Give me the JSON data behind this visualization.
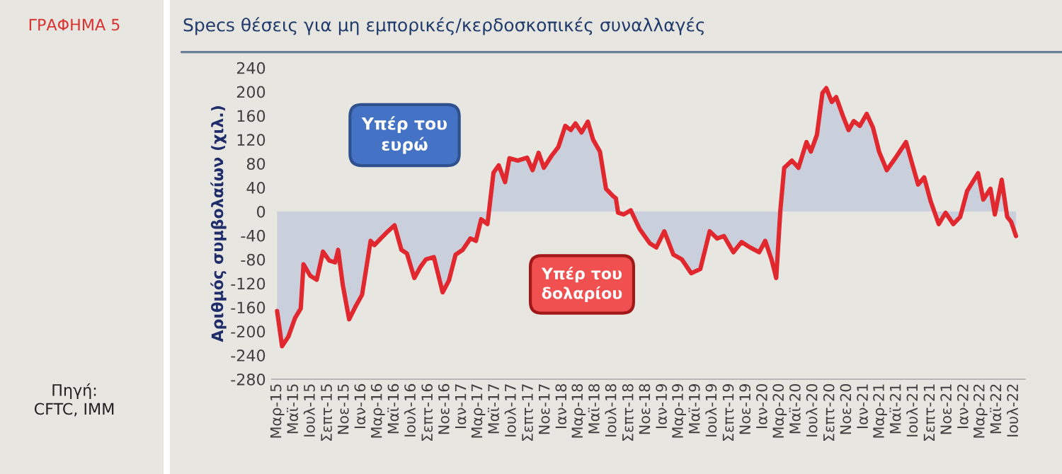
{
  "chart_data": {
    "type": "area",
    "title": "Specs θέσεις για μη εμπορικές/κερδοσκοπικές συναλλαγές",
    "ylabel": "Αριθμός συμβολαίων (χιλ.)",
    "annotations": [
      "ΓΡΑΦΗΜΑ 5",
      "Πηγή:\nCFTC, IMM",
      "Υπέρ του\nευρώ",
      "Υπέρ του\nδολαρίου"
    ],
    "x": [
      "2015-03-01",
      "2015-03-19",
      "2015-04-11",
      "2015-05-05",
      "2015-05-26",
      "2015-06-05",
      "2015-06-29",
      "2015-07-23",
      "2015-08-15",
      "2015-09-07",
      "2015-09-28",
      "2015-10-09",
      "2015-10-26",
      "2015-11-18",
      "2015-12-12",
      "2016-01-04",
      "2016-02-04",
      "2016-02-18",
      "2016-03-12",
      "2016-04-07",
      "2016-05-01",
      "2016-05-26",
      "2016-06-15",
      "2016-07-12",
      "2016-08-04",
      "2016-08-23",
      "2016-09-21",
      "2016-10-23",
      "2016-11-15",
      "2016-12-09",
      "2017-01-04",
      "2017-02-01",
      "2017-02-21",
      "2017-03-12",
      "2017-04-04",
      "2017-04-26",
      "2017-05-15",
      "2017-06-07",
      "2017-06-23",
      "2017-07-23",
      "2017-08-26",
      "2017-09-15",
      "2017-10-07",
      "2017-10-26",
      "2017-11-23",
      "2017-12-18",
      "2018-01-12",
      "2018-02-01",
      "2018-02-18",
      "2018-03-12",
      "2018-04-04",
      "2018-04-23",
      "2018-05-18",
      "2018-06-09",
      "2018-07-04",
      "2018-07-15",
      "2018-07-23",
      "2018-08-12",
      "2018-09-07",
      "2018-10-09",
      "2018-11-15",
      "2018-12-09",
      "2019-01-07",
      "2019-02-09",
      "2019-03-12",
      "2019-04-15",
      "2019-05-18",
      "2019-06-21",
      "2019-07-18",
      "2019-08-12",
      "2019-09-15",
      "2019-10-15",
      "2019-11-15",
      "2019-12-18",
      "2020-01-09",
      "2020-02-01",
      "2020-02-18",
      "2020-03-04",
      "2020-03-18",
      "2020-04-15",
      "2020-05-09",
      "2020-06-07",
      "2020-06-23",
      "2020-07-15",
      "2020-08-04",
      "2020-08-18",
      "2020-09-07",
      "2020-09-23",
      "2020-10-18",
      "2020-11-07",
      "2020-11-26",
      "2020-12-18",
      "2021-01-12",
      "2021-02-04",
      "2021-02-26",
      "2021-03-26",
      "2021-04-26",
      "2021-06-04",
      "2021-06-23",
      "2021-07-18",
      "2021-08-09",
      "2021-09-01",
      "2021-10-01",
      "2021-10-26",
      "2021-11-23",
      "2021-12-18",
      "2022-01-12",
      "2022-02-21",
      "2022-03-12",
      "2022-04-07",
      "2022-04-23",
      "2022-05-18",
      "2022-06-07",
      "2022-06-21",
      "2022-07-09"
    ],
    "series": [
      {
        "color": "#e0282e",
        "values": [
          -166,
          -225,
          -209,
          -178,
          -162,
          -88,
          -107,
          -114,
          -67,
          -82,
          -85,
          -64,
          -123,
          -180,
          -158,
          -139,
          -49,
          -56,
          -45,
          -33,
          -23,
          -64,
          -70,
          -111,
          -92,
          -80,
          -76,
          -135,
          -115,
          -72,
          -64,
          -45,
          -49,
          -13,
          -21,
          65,
          77,
          49,
          89,
          85,
          90,
          69,
          98,
          73,
          93,
          108,
          143,
          136,
          147,
          132,
          150,
          120,
          100,
          38,
          26,
          22,
          -2,
          -5,
          2,
          -29,
          -53,
          -60,
          -33,
          -72,
          -80,
          -103,
          -96,
          -33,
          -45,
          -41,
          -68,
          -51,
          -60,
          -68,
          -49,
          -80,
          -111,
          2,
          73,
          85,
          73,
          116,
          100,
          128,
          198,
          206,
          183,
          191,
          159,
          136,
          151,
          143,
          163,
          140,
          100,
          69,
          89,
          116,
          85,
          45,
          57,
          18,
          -21,
          -2,
          -21,
          -9,
          34,
          64,
          20,
          38,
          -5,
          53,
          -9,
          -17,
          -41
        ]
      }
    ],
    "xticks": [
      {
        "value": "2015-03-01",
        "label": "Μαρ-15"
      },
      {
        "value": "2015-05-01",
        "label": "Μαϊ-15"
      },
      {
        "value": "2015-07-01",
        "label": "Ιουλ-15"
      },
      {
        "value": "2015-09-01",
        "label": "Σεπτ-15"
      },
      {
        "value": "2015-11-01",
        "label": "Νοε-15"
      },
      {
        "value": "2016-01-01",
        "label": "Ιαν-16"
      },
      {
        "value": "2016-03-01",
        "label": "Μαρ-16"
      },
      {
        "value": "2016-05-01",
        "label": "Μαϊ-16"
      },
      {
        "value": "2016-07-01",
        "label": "Ιουλ-16"
      },
      {
        "value": "2016-09-01",
        "label": "Σεπτ-16"
      },
      {
        "value": "2016-11-01",
        "label": "Νοε-16"
      },
      {
        "value": "2017-01-01",
        "label": "Ιαν-17"
      },
      {
        "value": "2017-03-01",
        "label": "Μαρ-17"
      },
      {
        "value": "2017-05-01",
        "label": "Μαϊ-17"
      },
      {
        "value": "2017-07-01",
        "label": "Ιουλ-17"
      },
      {
        "value": "2017-09-01",
        "label": "Σεπτ-17"
      },
      {
        "value": "2017-11-01",
        "label": "Νοε-17"
      },
      {
        "value": "2018-01-01",
        "label": "Ιαν-18"
      },
      {
        "value": "2018-03-01",
        "label": "Μαρ-18"
      },
      {
        "value": "2018-05-01",
        "label": "Μαϊ-18"
      },
      {
        "value": "2018-07-01",
        "label": "Ιουλ-18"
      },
      {
        "value": "2018-09-01",
        "label": "Σεπτ-18"
      },
      {
        "value": "2018-11-01",
        "label": "Νοε-18"
      },
      {
        "value": "2019-01-01",
        "label": "Ιαν-19"
      },
      {
        "value": "2019-03-01",
        "label": "Μαρ-19"
      },
      {
        "value": "2019-05-01",
        "label": "Μαϊ-19"
      },
      {
        "value": "2019-07-01",
        "label": "Ιουλ-19"
      },
      {
        "value": "2019-09-01",
        "label": "Σεπτ-19"
      },
      {
        "value": "2019-11-01",
        "label": "Νοε-19"
      },
      {
        "value": "2020-01-01",
        "label": "Ιαν-20"
      },
      {
        "value": "2020-03-01",
        "label": "Μαρ-20"
      },
      {
        "value": "2020-05-01",
        "label": "Μαϊ-20"
      },
      {
        "value": "2020-07-01",
        "label": "Ιουλ-20"
      },
      {
        "value": "2020-09-01",
        "label": "Σεπτ-20"
      },
      {
        "value": "2020-11-01",
        "label": "Νοε-20"
      },
      {
        "value": "2021-01-01",
        "label": "Ιαν-21"
      },
      {
        "value": "2021-03-01",
        "label": "Μαρ-21"
      },
      {
        "value": "2021-05-01",
        "label": "Μαϊ-21"
      },
      {
        "value": "2021-07-01",
        "label": "Ιουλ-21"
      },
      {
        "value": "2021-09-01",
        "label": "Σεπτ-21"
      },
      {
        "value": "2021-11-01",
        "label": "Νοε-21"
      },
      {
        "value": "2022-01-01",
        "label": "Ιαν-22"
      },
      {
        "value": "2022-03-01",
        "label": "Μαρ-22"
      },
      {
        "value": "2022-05-01",
        "label": "Μαϊ-22"
      },
      {
        "value": "2022-07-01",
        "label": "Ιουλ-22"
      }
    ],
    "xlim": [
      "2015-02-10",
      "2022-08-10"
    ],
    "ylim": [
      -280,
      240
    ],
    "yticks": [
      -280,
      -240,
      -200,
      -160,
      -120,
      -80,
      -40,
      0,
      40,
      80,
      120,
      160,
      200,
      240
    ]
  }
}
